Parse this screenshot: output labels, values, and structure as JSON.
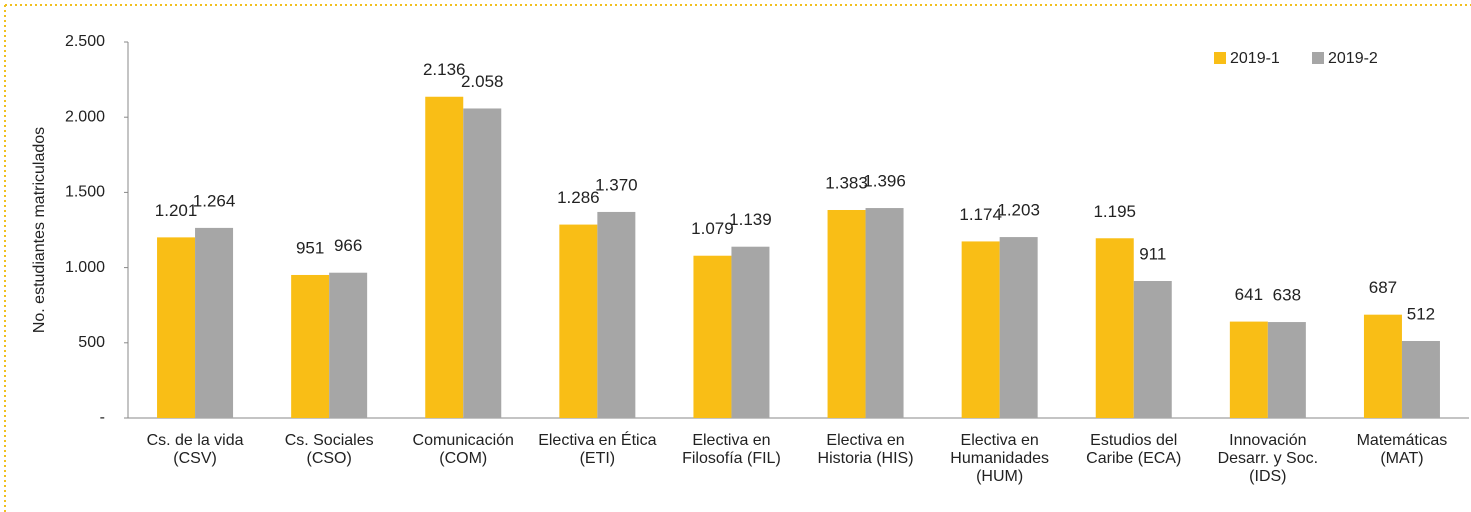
{
  "chart_data": {
    "type": "bar",
    "y_label": "No. estudiantes matriculados",
    "categories": [
      [
        "Cs. de la vida",
        "(CSV)"
      ],
      [
        "Cs. Sociales",
        "(CSO)"
      ],
      [
        "Comunicación",
        "(COM)"
      ],
      [
        "Electiva en Ética",
        "(ETI)"
      ],
      [
        "Electiva en",
        "Filosofía (FIL)"
      ],
      [
        "Electiva en",
        "Historia (HIS)"
      ],
      [
        "Electiva en",
        "Humanidades",
        "(HUM)"
      ],
      [
        "Estudios del",
        "Caribe (ECA)"
      ],
      [
        "Innovación",
        "Desarr. y Soc.",
        "(IDS)"
      ],
      [
        "Matemáticas",
        "(MAT)"
      ]
    ],
    "series": [
      {
        "name": "2019-1",
        "color": "#f9be16",
        "values": [
          1201,
          951,
          2136,
          1286,
          1079,
          1383,
          1174,
          1195,
          641,
          687
        ],
        "value_labels": [
          "1.201",
          "951",
          "2.136",
          "1.286",
          "1.079",
          "1.383",
          "1.174",
          "1.195",
          "641",
          "687"
        ]
      },
      {
        "name": "2019-2",
        "color": "#a6a6a6",
        "values": [
          1264,
          966,
          2058,
          1370,
          1139,
          1396,
          1203,
          911,
          638,
          512
        ],
        "value_labels": [
          "1.264",
          "966",
          "2.058",
          "1.370",
          "1.139",
          "1.396",
          "1.203",
          "911",
          "638",
          "512"
        ]
      }
    ],
    "ylim": [
      0,
      2500
    ],
    "yticks": [
      {
        "value": 0,
        "label": "-"
      },
      500,
      {
        "value": 1000,
        "label": "1.000"
      },
      {
        "value": 1500,
        "label": "1.500"
      },
      {
        "value": 2000,
        "label": "2.000"
      },
      {
        "value": 2500,
        "label": "2.500"
      }
    ],
    "legend": "top-right"
  }
}
